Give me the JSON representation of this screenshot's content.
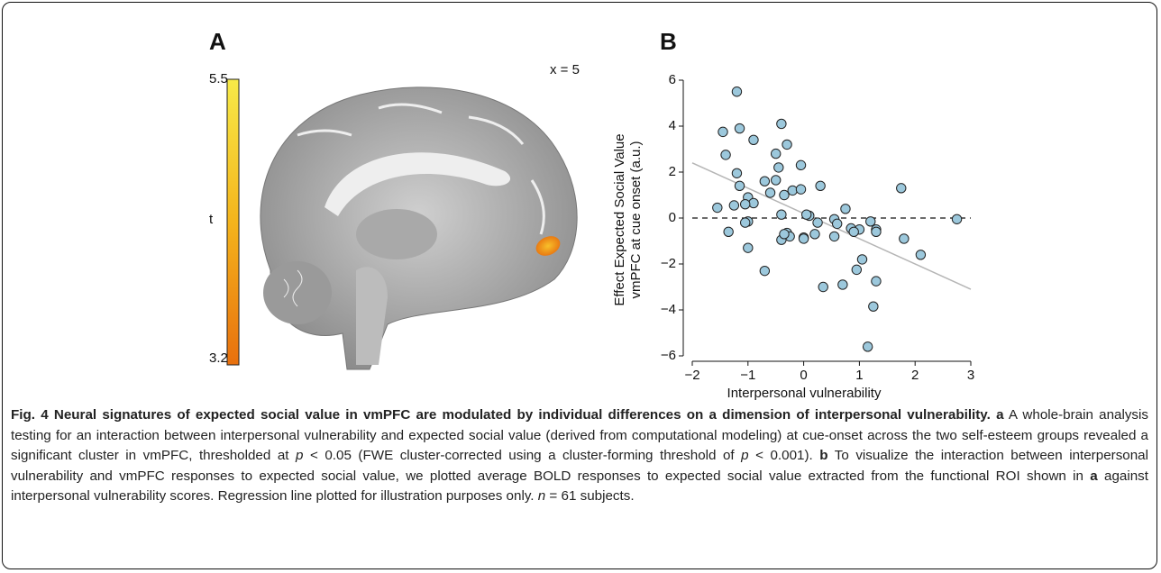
{
  "panel_a": {
    "label": "A",
    "slice_label": "x = 5",
    "colorbar": {
      "max": 5.5,
      "min": 3.2,
      "label": "t"
    }
  },
  "chart_data": {
    "type": "scatter",
    "panel_label": "B",
    "x_label": "Interpersonal vulnerability",
    "y_label": [
      "Effect Expected Social Value",
      "vmPFC at cue onset (a.u.)"
    ],
    "xlim": [
      -2,
      3
    ],
    "xticks": [
      {
        "value": -2,
        "label": "−2"
      },
      {
        "value": -1,
        "label": "−1"
      },
      0,
      1,
      2,
      3
    ],
    "ylim": [
      -6,
      6
    ],
    "yticks": [
      {
        "value": -6,
        "label": "−6"
      },
      {
        "value": -4,
        "label": "−4"
      },
      {
        "value": -2,
        "label": "−2"
      },
      0,
      2,
      4,
      6
    ],
    "color": "#9cc8dc",
    "reference_line_y": 0,
    "regression_line": {
      "x": [
        -2,
        3
      ],
      "y": [
        2.4,
        -3.1
      ],
      "color": "#b5b5b5"
    },
    "x": [
      -1.2,
      -1.45,
      -1.15,
      -0.4,
      -1.4,
      -0.9,
      -0.3,
      -0.5,
      -1.2,
      -0.45,
      -0.05,
      -0.7,
      -0.5,
      -0.2,
      -0.05,
      -1.15,
      -0.6,
      -0.35,
      0.3,
      -1.0,
      -0.9,
      -1.05,
      -1.25,
      -1.55,
      0.1,
      0.05,
      -0.4,
      -1.0,
      -1.05,
      0.25,
      0.55,
      0.6,
      0.75,
      0.85,
      1.2,
      1.3,
      1.3,
      1.0,
      1.75,
      2.75,
      -1.35,
      -0.4,
      -0.3,
      -0.25,
      0.0,
      0.2,
      0.55,
      -1.0,
      1.8,
      1.05,
      2.1,
      0.95,
      -0.7,
      1.3,
      0.35,
      0.7,
      1.25,
      1.15,
      0.0,
      -0.35,
      0.9
    ],
    "y": [
      5.5,
      3.75,
      3.9,
      4.1,
      2.75,
      3.4,
      3.2,
      2.8,
      1.95,
      2.2,
      2.3,
      1.6,
      1.65,
      1.2,
      1.25,
      1.4,
      1.1,
      1.0,
      1.4,
      0.9,
      0.65,
      0.6,
      0.55,
      0.45,
      0.1,
      0.15,
      0.15,
      -0.15,
      -0.2,
      -0.2,
      -0.05,
      -0.25,
      0.4,
      -0.45,
      -0.15,
      -0.5,
      -0.6,
      -0.5,
      1.3,
      -0.05,
      -0.6,
      -0.95,
      -0.65,
      -0.8,
      -0.85,
      -0.7,
      -0.8,
      -1.3,
      -0.9,
      -1.8,
      -1.6,
      -2.25,
      -2.3,
      -2.75,
      -3.0,
      -2.9,
      -3.85,
      -5.6,
      -0.9,
      -0.7,
      -0.6
    ]
  },
  "caption": {
    "title": "Fig. 4 Neural signatures of expected social value in vmPFC are modulated by individual differences on a dimension of interpersonal vulnerability.",
    "parts": [
      "a",
      " A whole-brain analysis testing for an interaction between interpersonal vulnerability and expected social value (derived from computational modeling) at cue-onset across the two self-esteem groups revealed a significant cluster in vmPFC, thresholded at ",
      "p",
      " < 0.05 (FWE cluster-corrected using a cluster-forming threshold of ",
      "p",
      " < 0.001). ",
      "b",
      " To visualize the interaction between interpersonal vulnerability and vmPFC responses to expected social value, we plotted average BOLD responses to expected social value extracted from the functional ROI shown in ",
      "a",
      " against interpersonal vulnerability scores. Regression line plotted for illustration purposes only. ",
      "n",
      " = 61 subjects."
    ]
  }
}
